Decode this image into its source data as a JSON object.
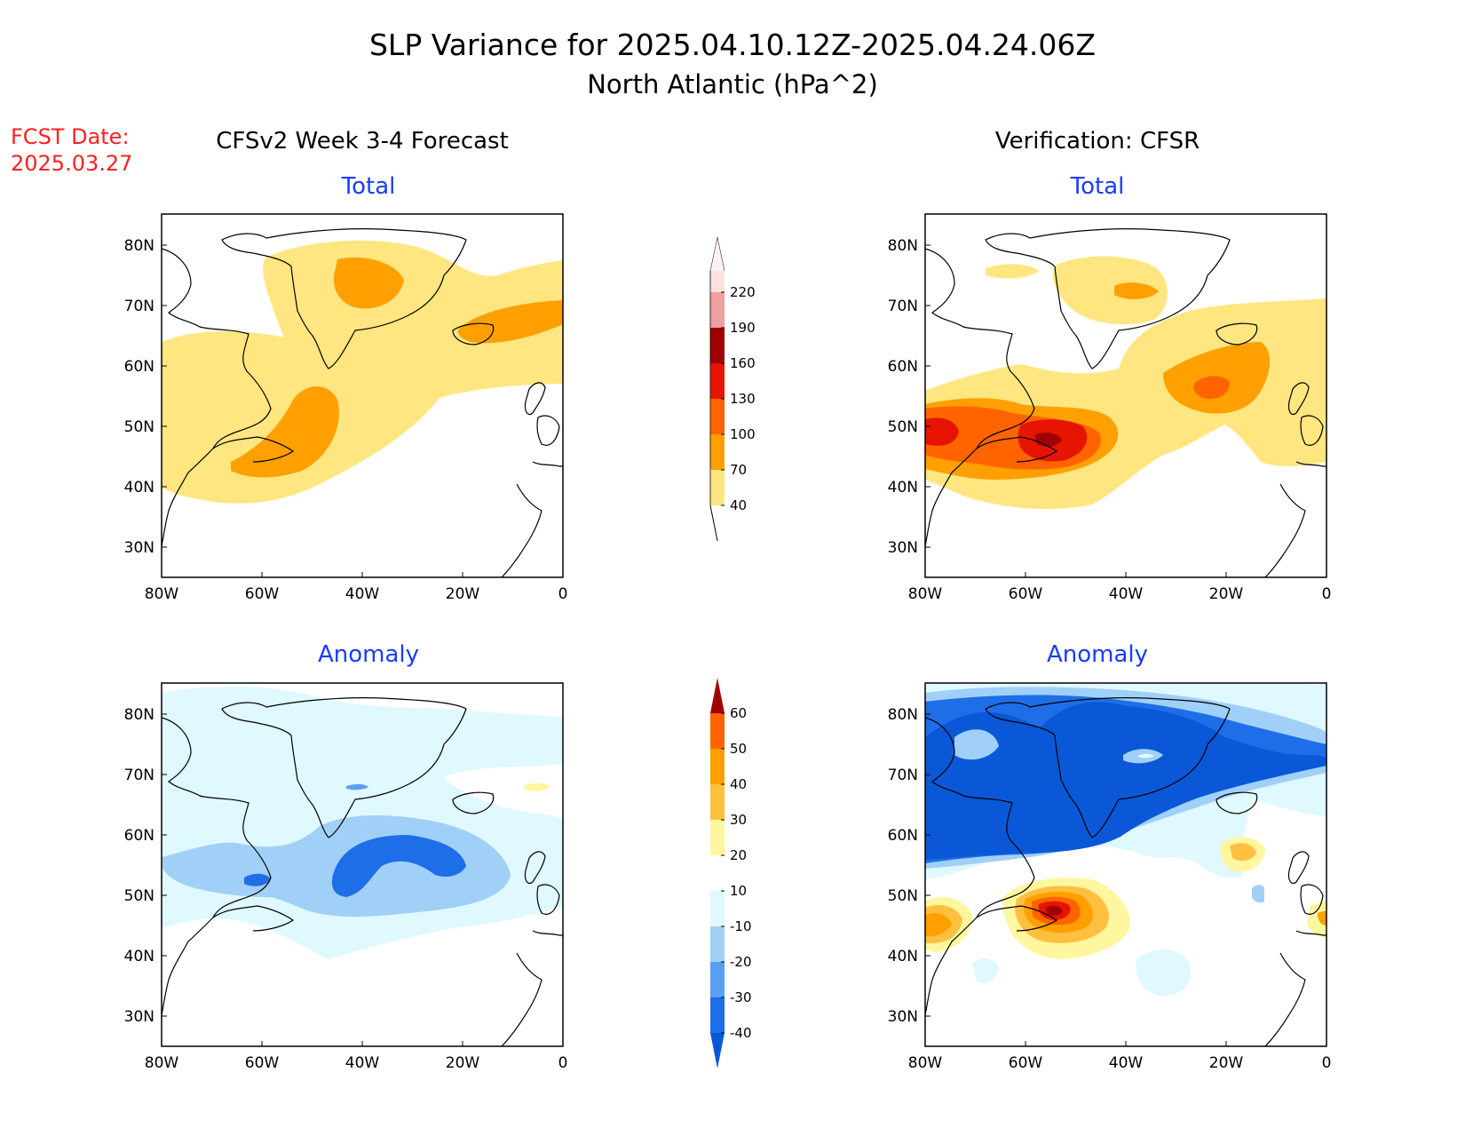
{
  "title": {
    "line1": "SLP Variance for 2025.04.10.12Z-2025.04.24.06Z",
    "line2": "North Atlantic (hPa^2)"
  },
  "fcst": {
    "line1": "FCST Date:",
    "line2": "2025.03.27",
    "color": "#ff2020"
  },
  "columns": {
    "left": "CFSv2 Week 3-4 Forecast",
    "right": "Verification: CFSR"
  },
  "panel_titles": {
    "total": "Total",
    "anomaly": "Anomaly",
    "color": "#1a3cff"
  },
  "axes": {
    "lat_labels": [
      "80N",
      "70N",
      "60N",
      "50N",
      "40N",
      "30N"
    ],
    "lon_labels": [
      "80W",
      "60W",
      "40W",
      "20W",
      "0"
    ]
  },
  "colorbars": {
    "total": {
      "levels": [
        "40",
        "70",
        "100",
        "130",
        "160",
        "190",
        "220"
      ],
      "colors": [
        "#ffe680",
        "#ffa000",
        "#ff6400",
        "#e61400",
        "#a00000",
        "#f0a0a0",
        "#ffe0e0"
      ]
    },
    "anomaly": {
      "levels": [
        "-40",
        "-30",
        "-20",
        "-10",
        "10",
        "20",
        "30",
        "40",
        "50",
        "60"
      ],
      "colors": [
        "#0a58d8",
        "#1e6ee8",
        "#5aa0f0",
        "#a0d0f8",
        "#e0f8ff",
        "#ffffff",
        "#fff6a0",
        "#ffc040",
        "#ffa000",
        "#ff6400",
        "#e61400",
        "#a00000"
      ]
    }
  }
}
